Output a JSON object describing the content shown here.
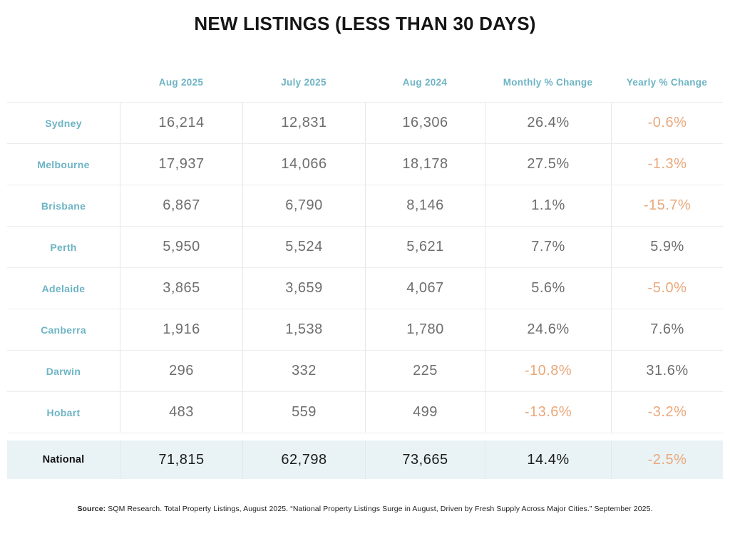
{
  "page": {
    "title": "NEW LISTINGS (LESS THAN 30 DAYS)"
  },
  "chart_data": {
    "type": "table",
    "title": "NEW LISTINGS (LESS THAN 30 DAYS)",
    "columns": [
      "Aug 2025",
      "July 2025",
      "Aug 2024",
      "Monthly % Change",
      "Yearly % Change"
    ],
    "rows": [
      {
        "label": "Sydney",
        "values": [
          "16,214",
          "12,831",
          "16,306",
          "26.4%",
          "-0.6%"
        ]
      },
      {
        "label": "Melbourne",
        "values": [
          "17,937",
          "14,066",
          "18,178",
          "27.5%",
          "-1.3%"
        ]
      },
      {
        "label": "Brisbane",
        "values": [
          "6,867",
          "6,790",
          "8,146",
          "1.1%",
          "-15.7%"
        ]
      },
      {
        "label": "Perth",
        "values": [
          "5,950",
          "5,524",
          "5,621",
          "7.7%",
          "5.9%"
        ]
      },
      {
        "label": "Adelaide",
        "values": [
          "3,865",
          "3,659",
          "4,067",
          "5.6%",
          "-5.0%"
        ]
      },
      {
        "label": "Canberra",
        "values": [
          "1,916",
          "1,538",
          "1,780",
          "24.6%",
          "7.6%"
        ]
      },
      {
        "label": "Darwin",
        "values": [
          "296",
          "332",
          "225",
          "-10.8%",
          "31.6%"
        ]
      },
      {
        "label": "Hobart",
        "values": [
          "483",
          "559",
          "499",
          "-13.6%",
          "-3.2%"
        ]
      }
    ],
    "total_row": {
      "label": "National",
      "values": [
        "71,815",
        "62,798",
        "73,665",
        "14.4%",
        "-2.5%"
      ]
    },
    "legend_position": "none",
    "grid": "row-and-column-dividers"
  },
  "colors": {
    "accent_teal": "#6db4c4",
    "value_gray": "#6e6e6e",
    "negative_orange": "#e9a87c",
    "total_row_bg": "#e9f3f6",
    "title_black": "#151515"
  },
  "source": {
    "label": "Source:",
    "text": "SQM Research. Total Property Listings, August 2025. “National Property Listings Surge in August, Driven by Fresh Supply Across Major Cities.” September 2025."
  }
}
